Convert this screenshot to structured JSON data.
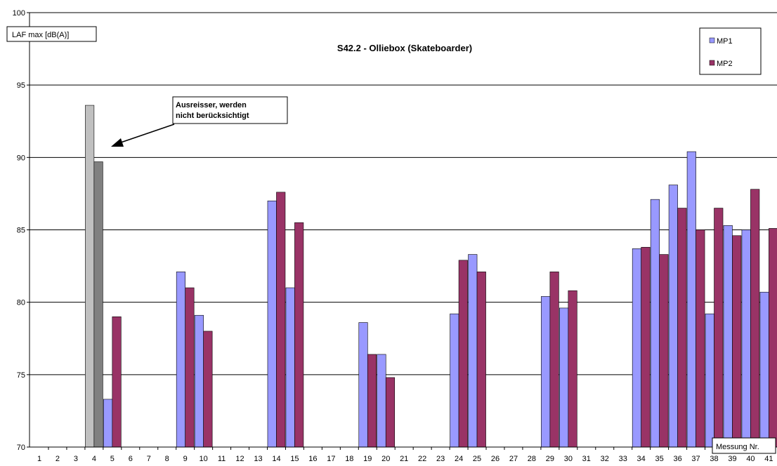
{
  "chart_data": {
    "type": "bar",
    "title": "S42.2  - Olliebox (Skateboarder)",
    "ylabel": "LAF max [dB(A)]",
    "xlabel": "Messung Nr.",
    "ylim": [
      70,
      100
    ],
    "yticks": [
      70,
      75,
      80,
      85,
      90,
      95,
      100
    ],
    "grid": true,
    "legend_position": "top-right",
    "colors": {
      "MP1": "#9999ff",
      "MP2": "#993366",
      "outlier_MP1": "#c0c0c0",
      "outlier_MP2": "#808080"
    },
    "categories": [
      "1",
      "2",
      "3",
      "4",
      "5",
      "6",
      "7",
      "8",
      "9",
      "10",
      "11",
      "12",
      "13",
      "14",
      "15",
      "16",
      "17",
      "18",
      "19",
      "20",
      "21",
      "22",
      "23",
      "24",
      "25",
      "26",
      "27",
      "28",
      "29",
      "30",
      "31",
      "32",
      "33",
      "34",
      "35",
      "36",
      "37",
      "38",
      "39",
      "40",
      "41"
    ],
    "series": [
      {
        "name": "MP1",
        "values": [
          null,
          null,
          null,
          93.6,
          73.3,
          null,
          null,
          null,
          82.1,
          79.1,
          null,
          null,
          null,
          87.0,
          81.0,
          null,
          null,
          null,
          78.6,
          76.4,
          null,
          null,
          null,
          79.2,
          83.3,
          null,
          null,
          null,
          80.4,
          79.6,
          null,
          null,
          null,
          83.7,
          87.1,
          88.1,
          90.4,
          79.2,
          85.3,
          85.0,
          80.7
        ]
      },
      {
        "name": "MP2",
        "values": [
          null,
          null,
          null,
          89.7,
          79.0,
          null,
          null,
          null,
          81.0,
          78.0,
          null,
          null,
          null,
          87.6,
          85.5,
          null,
          null,
          null,
          76.4,
          74.8,
          null,
          null,
          null,
          82.9,
          82.1,
          null,
          null,
          null,
          82.1,
          80.8,
          null,
          null,
          null,
          83.8,
          83.3,
          86.5,
          85.0,
          86.5,
          84.6,
          87.8,
          85.1
        ]
      }
    ],
    "outlier_category": "4",
    "annotation": {
      "lines": [
        "Ausreisser, werden",
        "nicht berücksichtigt"
      ]
    }
  }
}
